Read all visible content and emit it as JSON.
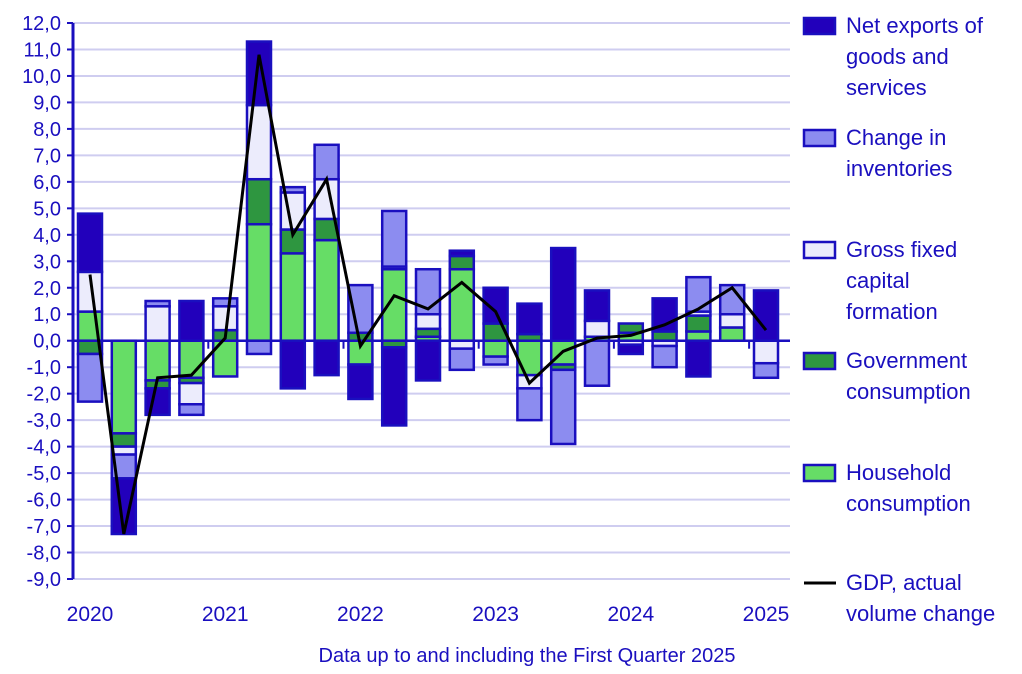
{
  "chart_data": {
    "type": "bar",
    "stacked": true,
    "note": "Data up to and including the First Quarter 2025",
    "x_tick_labels": [
      "2020",
      "2021",
      "2022",
      "2023",
      "2024",
      "2025"
    ],
    "categories": [
      "2020 Q1",
      "2020 Q2",
      "2020 Q3",
      "2020 Q4",
      "2021 Q1",
      "2021 Q2",
      "2021 Q3",
      "2021 Q4",
      "2022 Q1",
      "2022 Q2",
      "2022 Q3",
      "2022 Q4",
      "2023 Q1",
      "2023 Q2",
      "2023 Q3",
      "2023 Q4",
      "2024 Q1",
      "2024 Q2",
      "2024 Q3",
      "2024 Q4",
      "2025 Q1"
    ],
    "ylim": [
      -9,
      12
    ],
    "y_ticks": [
      "12,0",
      "11,0",
      "10,0",
      "9,0",
      "8,0",
      "7,0",
      "6,0",
      "5,0",
      "4,0",
      "3,0",
      "2,0",
      "1,0",
      "0,0",
      "-1,0",
      "-2,0",
      "-3,0",
      "-4,0",
      "-5,0",
      "-6,0",
      "-7,0",
      "-8,0",
      "-9,0"
    ],
    "grid": true,
    "legend_position": "right",
    "series": [
      {
        "name": "Household consumption",
        "kind": "bar",
        "color": "#66dd66",
        "values": [
          1.1,
          -3.5,
          -1.5,
          -1.4,
          -1.35,
          4.4,
          3.3,
          3.8,
          -0.9,
          2.7,
          0.15,
          2.7,
          -0.6,
          -1.3,
          -0.9,
          0.15,
          0.3,
          0,
          0.35,
          0.5,
          0
        ]
      },
      {
        "name": "Government consumption",
        "kind": "bar",
        "color": "#2e9640",
        "values": [
          -0.5,
          -0.5,
          -0.3,
          -0.2,
          0.4,
          1.7,
          0.9,
          0.8,
          0.3,
          -0.25,
          0.3,
          0.5,
          0.65,
          0.25,
          -0.2,
          0,
          0.35,
          0.35,
          0.6,
          0,
          0
        ]
      },
      {
        "name": "Gross fixed capital formation",
        "kind": "bar",
        "color": "#ececfc",
        "values": [
          1.5,
          -0.3,
          1.3,
          -0.8,
          0.9,
          2.8,
          1.4,
          1.5,
          0,
          0.1,
          0.55,
          -0.3,
          0,
          -0.5,
          0,
          0.6,
          -0.15,
          -0.2,
          0.15,
          0.5,
          -0.85
        ]
      },
      {
        "name": "Change in inventories",
        "kind": "bar",
        "color": "#8c8cf0",
        "values": [
          -1.8,
          -0.9,
          0.2,
          -0.4,
          0.3,
          -0.5,
          0.2,
          1.3,
          1.8,
          2.1,
          1.7,
          -0.8,
          -0.3,
          -1.2,
          -2.8,
          -1.7,
          0,
          -0.8,
          1.3,
          1.1,
          -0.55
        ]
      },
      {
        "name": "Net exports of goods and services",
        "kind": "bar",
        "color": "#2200bb",
        "values": [
          2.2,
          -2.1,
          -1.0,
          1.5,
          0,
          2.4,
          -1.8,
          -1.3,
          -1.3,
          -2.95,
          -1.5,
          0.2,
          1.35,
          1.15,
          3.5,
          1.15,
          -0.35,
          1.25,
          -1.35,
          0,
          1.9
        ]
      },
      {
        "name": "GDP, actual volume change",
        "kind": "line",
        "color": "#000000",
        "values": [
          2.5,
          -7.3,
          -1.4,
          -1.3,
          0.1,
          10.8,
          4.0,
          6.1,
          -0.2,
          1.7,
          1.2,
          2.2,
          1.1,
          -1.6,
          -0.4,
          0.1,
          0.2,
          0.6,
          1.2,
          2.0,
          0.4
        ]
      }
    ],
    "legend": [
      {
        "lines": [
          "Net exports of",
          "goods and",
          "services"
        ],
        "color": "#2200bb",
        "kind": "box"
      },
      {
        "lines": [
          "Change in",
          "inventories"
        ],
        "color": "#8c8cf0",
        "kind": "box"
      },
      {
        "lines": [
          "Gross fixed",
          "capital",
          "formation"
        ],
        "color": "#ececfc",
        "kind": "box"
      },
      {
        "lines": [
          "Government",
          "consumption"
        ],
        "color": "#2e9640",
        "kind": "box"
      },
      {
        "lines": [
          "Household",
          "consumption"
        ],
        "color": "#66dd66",
        "kind": "box"
      },
      {
        "lines": [
          "GDP, actual",
          "volume change"
        ],
        "color": "#000000",
        "kind": "line"
      }
    ],
    "axis_color": "#1a0fbf",
    "grid_color": "#cfcdf0"
  }
}
